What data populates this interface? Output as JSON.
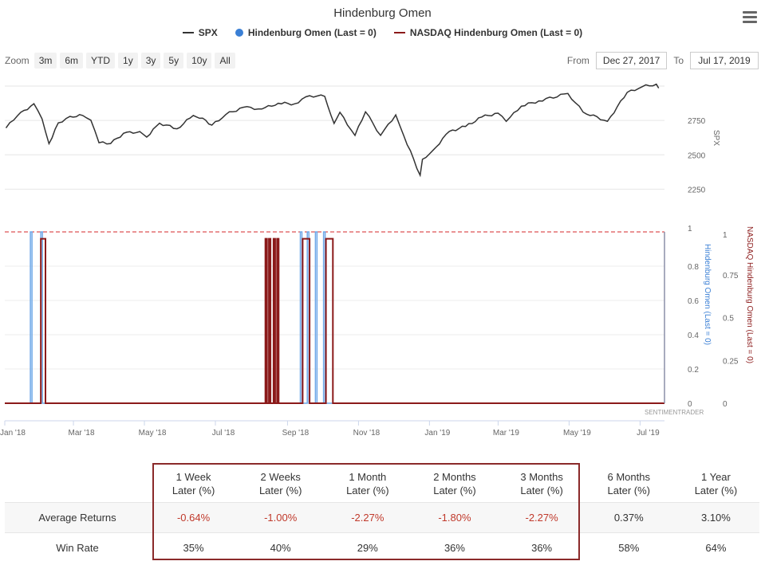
{
  "chart": {
    "title": "Hindenburg Omen",
    "menu_icon": "hamburger-menu-icon",
    "legend": [
      {
        "label": "SPX",
        "color": "#333333",
        "type": "line"
      },
      {
        "label": "Hindenburg Omen (Last = 0)",
        "color": "#3a7fd5",
        "type": "dot"
      },
      {
        "label": "NASDAQ Hindenburg Omen (Last = 0)",
        "color": "#8b1a1a",
        "type": "line"
      }
    ],
    "zoom": {
      "label": "Zoom",
      "buttons": [
        "3m",
        "6m",
        "YTD",
        "1y",
        "3y",
        "5y",
        "10y",
        "All"
      ]
    },
    "range": {
      "from_label": "From",
      "from_value": "Dec 27, 2017",
      "to_label": "To",
      "to_value": "Jul 17, 2019"
    },
    "watermark": "SENTIMENTRADER"
  },
  "chart_data": [
    {
      "type": "line",
      "series": [
        {
          "name": "SPX",
          "color": "#333333"
        }
      ],
      "ylabel": "SPX",
      "yticks": [
        2250,
        2500,
        2750
      ],
      "ylim": [
        2200,
        3000
      ],
      "xlabels": [
        "Jan '18",
        "Mar '18",
        "May '18",
        "Jul '18",
        "Sep '18",
        "Nov '18",
        "Jan '19",
        "Mar '19",
        "May '19",
        "Jul '19"
      ],
      "points": [
        [
          "2018-01-02",
          2695
        ],
        [
          "2018-01-12",
          2785
        ],
        [
          "2018-01-26",
          2872
        ],
        [
          "2018-02-02",
          2762
        ],
        [
          "2018-02-08",
          2581
        ],
        [
          "2018-02-16",
          2732
        ],
        [
          "2018-02-26",
          2779
        ],
        [
          "2018-03-09",
          2786
        ],
        [
          "2018-03-16",
          2752
        ],
        [
          "2018-03-23",
          2588
        ],
        [
          "2018-04-02",
          2582
        ],
        [
          "2018-04-13",
          2656
        ],
        [
          "2018-04-27",
          2669
        ],
        [
          "2018-05-03",
          2629
        ],
        [
          "2018-05-14",
          2730
        ],
        [
          "2018-05-29",
          2689
        ],
        [
          "2018-06-12",
          2786
        ],
        [
          "2018-06-20",
          2767
        ],
        [
          "2018-06-28",
          2716
        ],
        [
          "2018-07-10",
          2793
        ],
        [
          "2018-07-25",
          2846
        ],
        [
          "2018-08-10",
          2833
        ],
        [
          "2018-08-24",
          2875
        ],
        [
          "2018-09-07",
          2871
        ],
        [
          "2018-09-20",
          2930
        ],
        [
          "2018-10-03",
          2925
        ],
        [
          "2018-10-11",
          2728
        ],
        [
          "2018-10-16",
          2809
        ],
        [
          "2018-10-29",
          2641
        ],
        [
          "2018-11-07",
          2813
        ],
        [
          "2018-11-20",
          2641
        ],
        [
          "2018-12-03",
          2790
        ],
        [
          "2018-12-10",
          2637
        ],
        [
          "2018-12-24",
          2351
        ],
        [
          "2018-12-26",
          2467
        ],
        [
          "2019-01-04",
          2532
        ],
        [
          "2019-01-18",
          2670
        ],
        [
          "2019-02-01",
          2706
        ],
        [
          "2019-02-15",
          2775
        ],
        [
          "2019-03-01",
          2803
        ],
        [
          "2019-03-08",
          2743
        ],
        [
          "2019-03-21",
          2854
        ],
        [
          "2019-04-05",
          2892
        ],
        [
          "2019-04-30",
          2946
        ],
        [
          "2019-05-13",
          2811
        ],
        [
          "2019-06-03",
          2744
        ],
        [
          "2019-06-20",
          2954
        ],
        [
          "2019-07-03",
          2996
        ],
        [
          "2019-07-15",
          3014
        ],
        [
          "2019-07-17",
          2985
        ]
      ]
    },
    {
      "type": "line",
      "series": [
        {
          "name": "Hindenburg Omen (Last = 0)",
          "color": "#3a7fd5",
          "signals": [
            [
              "2018-01-23",
              "2018-01-24"
            ],
            [
              "2018-02-01",
              "2018-02-02"
            ],
            [
              "2018-09-12",
              "2018-09-13"
            ],
            [
              "2018-09-18",
              "2018-09-19"
            ],
            [
              "2018-09-25",
              "2018-09-26"
            ],
            [
              "2018-10-02",
              "2018-10-03"
            ]
          ]
        },
        {
          "name": "NASDAQ Hindenburg Omen (Last = 0)",
          "color": "#8b1a1a",
          "signals": [
            [
              "2018-02-01",
              "2018-02-05"
            ],
            [
              "2018-08-13",
              "2018-08-14"
            ],
            [
              "2018-08-16",
              "2018-08-17"
            ],
            [
              "2018-08-20",
              "2018-08-21"
            ],
            [
              "2018-08-23",
              "2018-08-24"
            ],
            [
              "2018-09-14",
              "2018-09-20"
            ],
            [
              "2018-10-04",
              "2018-10-10"
            ]
          ]
        }
      ],
      "ylabel_left": "Hindenburg Omen (Last = 0)",
      "yticks_left": [
        0,
        0.2,
        0.4,
        0.6,
        0.8,
        1
      ],
      "ylabel_right": "NASDAQ Hindenburg Omen (Last = 0)",
      "yticks_right": [
        0,
        0.25,
        0.5,
        0.75,
        1
      ],
      "reference_line": 1,
      "ylim": [
        0,
        1
      ]
    }
  ],
  "table": {
    "headers": [
      [
        "",
        ""
      ],
      [
        "1 Week",
        "Later (%)"
      ],
      [
        "2 Weeks",
        "Later (%)"
      ],
      [
        "1 Month",
        "Later (%)"
      ],
      [
        "2 Months",
        "Later (%)"
      ],
      [
        "3 Months",
        "Later (%)"
      ],
      [
        "6 Months",
        "Later (%)"
      ],
      [
        "1 Year",
        "Later (%)"
      ]
    ],
    "rows": [
      {
        "label": "Average Returns",
        "values": [
          "-0.64%",
          "-1.00%",
          "-2.27%",
          "-1.80%",
          "-2.27%",
          "0.37%",
          "3.10%"
        ]
      },
      {
        "label": "Win Rate",
        "values": [
          "35%",
          "40%",
          "29%",
          "36%",
          "36%",
          "58%",
          "64%"
        ]
      }
    ]
  }
}
